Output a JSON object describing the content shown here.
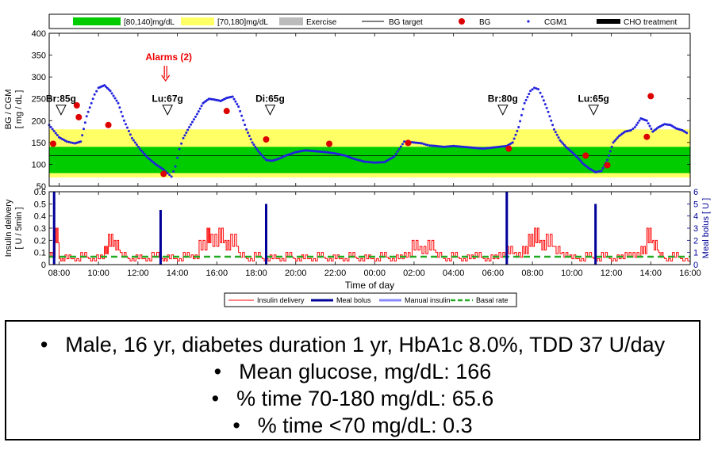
{
  "chart_data": [
    {
      "type": "line",
      "ylabel": "BG / CGM\n[ mg / dL ]",
      "ylim": [
        50,
        400
      ],
      "yticks": [
        50,
        100,
        150,
        200,
        250,
        300,
        350,
        400
      ],
      "x_unit": "hours since 07:30 day 1",
      "xlim": [
        0,
        32.5
      ],
      "xtick_labels": [
        "08:00",
        "10:00",
        "12:00",
        "14:00",
        "16:00",
        "18:00",
        "20:00",
        "22:00",
        "00:00",
        "02:00",
        "04:00",
        "06:00",
        "08:00",
        "10:00",
        "12:00",
        "14:00",
        "16:00"
      ],
      "bands": [
        {
          "name": "[70,180]mg/dL",
          "range": [
            70,
            180
          ],
          "color": "#ffff66"
        },
        {
          "name": "[80,140]mg/dL",
          "range": [
            80,
            140
          ],
          "color": "#00cc00"
        }
      ],
      "bg_target": 120,
      "legend": [
        "[80,140]mg/dL",
        "[70,180]mg/dL",
        "Exercise",
        "BG target",
        "BG",
        "CGM1",
        "CHO treatment"
      ],
      "legend_placement": "top",
      "cgm_series": {
        "name": "CGM1",
        "color": "#2222dd",
        "x": [
          0,
          0.5,
          0.9,
          1.1,
          1.3,
          1.6,
          1.9,
          2.3,
          2.5,
          2.8,
          3.1,
          3.5,
          3.8,
          4.2,
          4.6,
          5.0,
          5.4,
          5.8,
          6.0,
          6.2,
          6.4,
          6.6,
          6.8,
          7.1,
          7.5,
          7.8,
          8.1,
          8.4,
          8.7,
          9.0,
          9.3,
          9.6,
          10.0,
          10.3,
          10.6,
          11.0,
          11.3,
          11.6,
          12.0,
          12.5,
          13.0,
          13.5,
          14.0,
          14.5,
          15.0,
          15.5,
          16.0,
          16.5,
          17.0,
          17.5,
          18.0,
          18.5,
          18.9,
          19.1,
          19.3,
          19.6,
          20.0,
          20.5,
          21.0,
          21.5,
          22.0,
          22.4,
          22.8,
          23.2,
          23.5,
          23.8,
          24.1,
          24.4,
          24.6,
          24.8,
          25.0,
          25.3,
          25.6,
          25.9,
          26.2,
          26.5,
          26.8,
          27.1,
          27.4,
          27.7,
          28.0,
          28.3,
          28.6,
          28.9,
          29.2,
          29.5,
          29.7,
          30.0,
          30.3,
          30.6,
          30.9,
          31.2,
          31.5,
          31.8,
          32.1,
          32.4
        ],
        "y": [
          190,
          162,
          152,
          150,
          148,
          152,
          210,
          260,
          275,
          281,
          268,
          240,
          200,
          160,
          135,
          115,
          100,
          88,
          80,
          72,
          95,
          135,
          160,
          185,
          215,
          240,
          250,
          248,
          245,
          252,
          255,
          232,
          180,
          150,
          130,
          110,
          108,
          112,
          120,
          128,
          132,
          130,
          128,
          125,
          120,
          112,
          106,
          104,
          105,
          118,
          152,
          150,
          148,
          145,
          143,
          142,
          140,
          142,
          140,
          138,
          136,
          138,
          140,
          142,
          150,
          185,
          240,
          268,
          275,
          272,
          255,
          220,
          180,
          155,
          140,
          128,
          115,
          100,
          90,
          82,
          85,
          110,
          150,
          165,
          175,
          178,
          185,
          205,
          200,
          175,
          185,
          192,
          190,
          182,
          178,
          170
        ]
      },
      "bg_points": {
        "name": "BG",
        "color": "#dd0000",
        "x": [
          0.2,
          1.4,
          1.5,
          3.0,
          5.8,
          9.0,
          11.0,
          14.2,
          18.2,
          23.3,
          27.2,
          28.3,
          30.3,
          30.5
        ],
        "y": [
          147,
          235,
          208,
          190,
          78,
          222,
          157,
          147,
          149,
          136,
          120,
          98,
          163,
          256
        ]
      },
      "annotations": [
        {
          "label": "Br:85g",
          "x": 0.6,
          "y": 250
        },
        {
          "label": "Lu:67g",
          "x": 6.0,
          "y": 250
        },
        {
          "label": "Di:65g",
          "x": 11.2,
          "y": 250
        },
        {
          "label": "Br:80g",
          "x": 23.0,
          "y": 250
        },
        {
          "label": "Lu:65g",
          "x": 27.6,
          "y": 250
        }
      ],
      "alarm": {
        "label": "Alarms (2)",
        "x": 5.9
      },
      "title": "",
      "xlabel": ""
    },
    {
      "type": "bar",
      "ylabel": "Insulin delivery\n[ U / 5min ]",
      "ylim": [
        0,
        0.6
      ],
      "yticks": [
        0,
        0.1,
        0.2,
        0.3,
        0.4,
        0.5,
        0.6
      ],
      "y2label": "Meal bolus [ U ]",
      "y2lim": [
        0,
        6
      ],
      "y2ticks": [
        0,
        1,
        2,
        3,
        4,
        5,
        6
      ],
      "xlabel": "Time of day",
      "xlim": [
        0,
        32.5
      ],
      "xtick_labels": [
        "08:00",
        "10:00",
        "12:00",
        "14:00",
        "16:00",
        "18:00",
        "20:00",
        "22:00",
        "00:00",
        "02:00",
        "04:00",
        "06:00",
        "08:00",
        "10:00",
        "12:00",
        "14:00",
        "16:00"
      ],
      "basal_rate": 0.065,
      "meal_bolus": {
        "name": "Meal bolus",
        "color": "#000099",
        "x": [
          0.25,
          5.65,
          11.0,
          23.2,
          27.7
        ],
        "values": [
          6.0,
          4.5,
          5.0,
          6.0,
          5.0
        ]
      },
      "insulin_delivery": {
        "name": "Insulin delivery",
        "color": "#ff0000",
        "x": [
          0.0,
          0.3,
          0.5,
          0.8,
          1.2,
          1.6,
          2.0,
          2.4,
          2.8,
          3.0,
          3.3,
          3.6,
          4.0,
          4.4,
          4.8,
          5.2,
          5.7,
          6.0,
          6.4,
          6.8,
          7.2,
          7.6,
          8.0,
          8.2,
          8.6,
          8.9,
          9.2,
          9.6,
          10.0,
          10.4,
          10.8,
          11.2,
          11.6,
          12.0,
          12.4,
          12.8,
          13.2,
          13.6,
          14.0,
          14.4,
          14.8,
          15.2,
          15.6,
          16.0,
          16.4,
          16.8,
          17.2,
          17.6,
          18.0,
          18.4,
          18.8,
          19.2,
          19.6,
          20.0,
          20.4,
          20.8,
          21.2,
          21.6,
          22.0,
          22.4,
          22.8,
          23.2,
          23.6,
          24.0,
          24.3,
          24.6,
          24.9,
          25.2,
          25.6,
          26.0,
          26.4,
          26.8,
          27.2,
          27.6,
          28.0,
          28.4,
          28.8,
          29.2,
          29.6,
          30.0,
          30.3,
          30.6,
          30.9,
          31.2,
          31.6,
          32.0
        ],
        "values": [
          0.1,
          0.3,
          0.05,
          0.08,
          0.05,
          0.1,
          0.05,
          0.08,
          0.15,
          0.25,
          0.2,
          0.1,
          0.05,
          0.08,
          0.05,
          0.1,
          0.05,
          0.08,
          0.05,
          0.1,
          0.08,
          0.2,
          0.3,
          0.25,
          0.3,
          0.2,
          0.25,
          0.1,
          0.05,
          0.1,
          0.05,
          0.08,
          0.05,
          0.1,
          0.05,
          0.08,
          0.05,
          0.1,
          0.05,
          0.08,
          0.05,
          0.1,
          0.05,
          0.08,
          0.05,
          0.1,
          0.05,
          0.08,
          0.1,
          0.2,
          0.15,
          0.2,
          0.1,
          0.05,
          0.1,
          0.05,
          0.08,
          0.1,
          0.05,
          0.08,
          0.1,
          0.15,
          0.1,
          0.15,
          0.25,
          0.3,
          0.2,
          0.25,
          0.15,
          0.1,
          0.08,
          0.05,
          0.1,
          0.05,
          0.1,
          0.05,
          0.08,
          0.1,
          0.1,
          0.15,
          0.3,
          0.2,
          0.1,
          0.05,
          0.1,
          0.05
        ]
      },
      "legend": [
        "Insulin delivery",
        "Meal bolus",
        "Manual insulin",
        "Basal rate"
      ],
      "legend_placement": "bottom",
      "title": ""
    }
  ],
  "summary": {
    "lines": [
      "Male, 16 yr, diabetes duration 1 yr, HbA1c 8.0%, TDD 37 U/day",
      "Mean glucose, mg/dL: 166",
      "% time 70-180 mg/dL: 65.6",
      "% time <70 mg/dL: 0.3"
    ],
    "bullet": "•"
  },
  "colors": {
    "yellow_band": "#ffff66",
    "green_band": "#00cc00",
    "exercise": "#bbbbbb",
    "cgm": "#2222dd",
    "bg": "#dd0000",
    "insulin": "#ff0000",
    "meal_bolus": "#000099",
    "manual_insulin": "#8888ff",
    "basal": "#22aa22",
    "alarm": "#ee0000"
  }
}
